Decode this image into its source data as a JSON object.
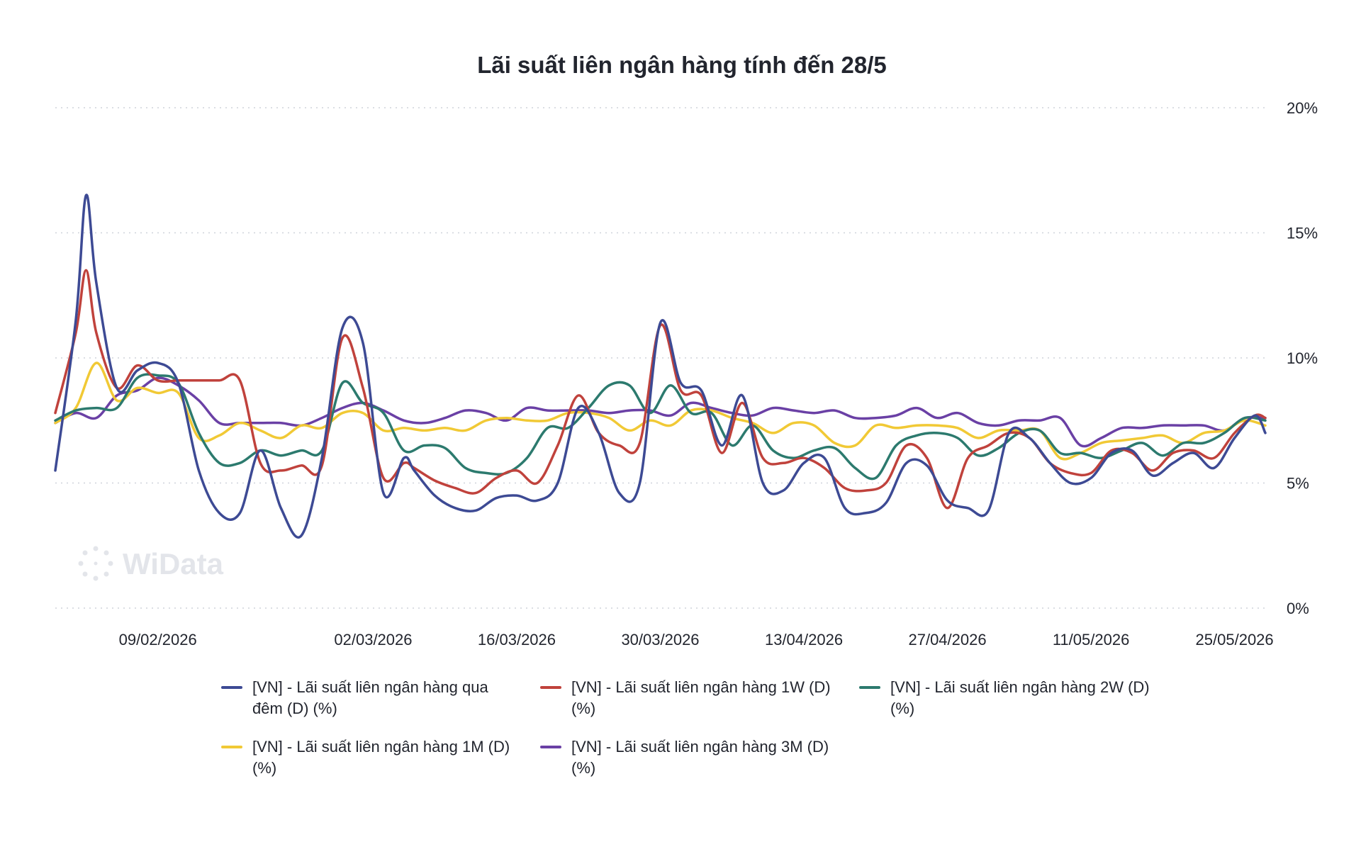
{
  "watermark": "WiData",
  "chart_data": {
    "type": "line",
    "title": "Lãi suất liên ngân hàng tính đến 28/5",
    "xlabel": "",
    "ylabel": "",
    "ylim": [
      0,
      20
    ],
    "yticks": [
      0,
      5,
      10,
      15,
      20
    ],
    "ytick_labels": [
      "0%",
      "5%",
      "10%",
      "15%",
      "20%"
    ],
    "x_range": [
      "2026-01-30",
      "2026-05-28"
    ],
    "xticks": [
      "2026-02-09",
      "2026-03-02",
      "2026-03-16",
      "2026-03-30",
      "2026-04-13",
      "2026-04-27",
      "2026-05-11",
      "2026-05-25"
    ],
    "xtick_labels": [
      "09/02/2026",
      "02/03/2026",
      "16/03/2026",
      "30/03/2026",
      "13/04/2026",
      "27/04/2026",
      "11/05/2026",
      "25/05/2026"
    ],
    "grid": true,
    "legend_position": "bottom",
    "series": [
      {
        "name": "[VN] - Lãi suất liên ngân hàng qua đêm (D) (%)",
        "color": "#3d4a94",
        "x": [
          "2026-01-30",
          "2026-02-01",
          "2026-02-02",
          "2026-02-03",
          "2026-02-05",
          "2026-02-07",
          "2026-02-09",
          "2026-02-11",
          "2026-02-13",
          "2026-02-15",
          "2026-02-17",
          "2026-02-19",
          "2026-02-21",
          "2026-02-23",
          "2026-02-25",
          "2026-02-27",
          "2026-03-01",
          "2026-03-03",
          "2026-03-05",
          "2026-03-06",
          "2026-03-08",
          "2026-03-10",
          "2026-03-12",
          "2026-03-14",
          "2026-03-16",
          "2026-03-18",
          "2026-03-20",
          "2026-03-22",
          "2026-03-24",
          "2026-03-26",
          "2026-03-28",
          "2026-03-30",
          "2026-04-01",
          "2026-04-03",
          "2026-04-05",
          "2026-04-07",
          "2026-04-09",
          "2026-04-11",
          "2026-04-13",
          "2026-04-15",
          "2026-04-17",
          "2026-04-19",
          "2026-04-21",
          "2026-04-23",
          "2026-04-25",
          "2026-04-27",
          "2026-04-29",
          "2026-05-01",
          "2026-05-03",
          "2026-05-05",
          "2026-05-07",
          "2026-05-09",
          "2026-05-11",
          "2026-05-13",
          "2026-05-15",
          "2026-05-17",
          "2026-05-19",
          "2026-05-21",
          "2026-05-23",
          "2026-05-25",
          "2026-05-27",
          "2026-05-28"
        ],
        "values": [
          5.5,
          11.5,
          16.5,
          13.0,
          8.8,
          9.5,
          9.8,
          9.0,
          5.5,
          3.8,
          3.8,
          6.3,
          4.0,
          2.9,
          6.0,
          11.2,
          10.6,
          4.6,
          6.0,
          5.5,
          4.5,
          4.0,
          3.9,
          4.4,
          4.5,
          4.3,
          5.0,
          8.0,
          7.0,
          4.6,
          5.0,
          11.4,
          9.0,
          8.7,
          6.5,
          8.5,
          5.0,
          4.7,
          5.8,
          6.0,
          4.0,
          3.8,
          4.2,
          5.8,
          5.7,
          4.3,
          4.0,
          3.9,
          7.0,
          6.8,
          5.8,
          5.0,
          5.2,
          6.2,
          6.3,
          5.3,
          5.8,
          6.2,
          5.6,
          6.8,
          7.7,
          7.0
        ]
      },
      {
        "name": "[VN] - Lãi suất liên ngân hàng 1W (D) (%)",
        "color": "#c0423c",
        "x": [
          "2026-01-30",
          "2026-02-01",
          "2026-02-02",
          "2026-02-03",
          "2026-02-05",
          "2026-02-07",
          "2026-02-09",
          "2026-02-11",
          "2026-02-13",
          "2026-02-15",
          "2026-02-17",
          "2026-02-19",
          "2026-02-21",
          "2026-02-23",
          "2026-02-25",
          "2026-02-27",
          "2026-03-01",
          "2026-03-03",
          "2026-03-05",
          "2026-03-06",
          "2026-03-08",
          "2026-03-10",
          "2026-03-12",
          "2026-03-14",
          "2026-03-16",
          "2026-03-18",
          "2026-03-20",
          "2026-03-22",
          "2026-03-24",
          "2026-03-26",
          "2026-03-28",
          "2026-03-30",
          "2026-04-01",
          "2026-04-03",
          "2026-04-05",
          "2026-04-07",
          "2026-04-09",
          "2026-04-11",
          "2026-04-13",
          "2026-04-15",
          "2026-04-17",
          "2026-04-19",
          "2026-04-21",
          "2026-04-23",
          "2026-04-25",
          "2026-04-27",
          "2026-04-29",
          "2026-05-01",
          "2026-05-03",
          "2026-05-05",
          "2026-05-07",
          "2026-05-09",
          "2026-05-11",
          "2026-05-13",
          "2026-05-15",
          "2026-05-17",
          "2026-05-19",
          "2026-05-21",
          "2026-05-23",
          "2026-05-25",
          "2026-05-27",
          "2026-05-28"
        ],
        "values": [
          7.8,
          11.0,
          13.5,
          11.0,
          8.8,
          9.7,
          9.1,
          9.1,
          9.1,
          9.1,
          9.1,
          5.8,
          5.5,
          5.7,
          5.7,
          10.8,
          8.8,
          5.2,
          5.8,
          5.6,
          5.1,
          4.8,
          4.6,
          5.2,
          5.5,
          5.0,
          6.5,
          8.5,
          7.0,
          6.5,
          6.6,
          11.3,
          8.7,
          8.5,
          6.2,
          8.2,
          6.0,
          5.8,
          6.0,
          5.6,
          4.8,
          4.7,
          5.0,
          6.5,
          6.0,
          4.0,
          6.0,
          6.5,
          7.0,
          6.8,
          5.8,
          5.4,
          5.4,
          6.3,
          6.2,
          5.5,
          6.2,
          6.3,
          6.0,
          7.0,
          7.7,
          7.6
        ]
      },
      {
        "name": "[VN] - Lãi suất liên ngân hàng 2W (D) (%)",
        "color": "#2c7a6e",
        "x": [
          "2026-01-30",
          "2026-02-01",
          "2026-02-03",
          "2026-02-05",
          "2026-02-07",
          "2026-02-09",
          "2026-02-11",
          "2026-02-13",
          "2026-02-15",
          "2026-02-17",
          "2026-02-19",
          "2026-02-21",
          "2026-02-23",
          "2026-02-25",
          "2026-02-27",
          "2026-03-01",
          "2026-03-03",
          "2026-03-05",
          "2026-03-07",
          "2026-03-09",
          "2026-03-11",
          "2026-03-13",
          "2026-03-15",
          "2026-03-17",
          "2026-03-19",
          "2026-03-21",
          "2026-03-23",
          "2026-03-25",
          "2026-03-27",
          "2026-03-29",
          "2026-03-31",
          "2026-04-02",
          "2026-04-04",
          "2026-04-06",
          "2026-04-08",
          "2026-04-10",
          "2026-04-12",
          "2026-04-14",
          "2026-04-16",
          "2026-04-18",
          "2026-04-20",
          "2026-04-22",
          "2026-04-24",
          "2026-04-26",
          "2026-04-28",
          "2026-04-30",
          "2026-05-02",
          "2026-05-04",
          "2026-05-06",
          "2026-05-08",
          "2026-05-10",
          "2026-05-12",
          "2026-05-14",
          "2026-05-16",
          "2026-05-18",
          "2026-05-20",
          "2026-05-22",
          "2026-05-24",
          "2026-05-26",
          "2026-05-28"
        ],
        "values": [
          7.5,
          7.9,
          8.0,
          8.0,
          9.2,
          9.3,
          9.0,
          7.0,
          5.8,
          5.8,
          6.3,
          6.1,
          6.3,
          6.3,
          9.0,
          8.2,
          7.8,
          6.3,
          6.5,
          6.4,
          5.6,
          5.4,
          5.4,
          6.0,
          7.2,
          7.2,
          8.0,
          8.9,
          8.9,
          7.8,
          8.9,
          7.8,
          7.8,
          6.5,
          7.3,
          6.3,
          6.0,
          6.3,
          6.4,
          5.6,
          5.2,
          6.5,
          6.9,
          7.0,
          6.8,
          6.1,
          6.4,
          7.0,
          7.1,
          6.2,
          6.2,
          6.0,
          6.3,
          6.6,
          6.1,
          6.6,
          6.6,
          7.0,
          7.6,
          7.5
        ]
      },
      {
        "name": "[VN] - Lãi suất liên ngân hàng 1M (D) (%)",
        "color": "#f1c935",
        "x": [
          "2026-01-30",
          "2026-02-01",
          "2026-02-03",
          "2026-02-05",
          "2026-02-07",
          "2026-02-09",
          "2026-02-11",
          "2026-02-13",
          "2026-02-15",
          "2026-02-17",
          "2026-02-19",
          "2026-02-21",
          "2026-02-23",
          "2026-02-25",
          "2026-02-27",
          "2026-03-01",
          "2026-03-03",
          "2026-03-05",
          "2026-03-07",
          "2026-03-09",
          "2026-03-11",
          "2026-03-13",
          "2026-03-15",
          "2026-03-17",
          "2026-03-19",
          "2026-03-21",
          "2026-03-23",
          "2026-03-25",
          "2026-03-27",
          "2026-03-29",
          "2026-03-31",
          "2026-04-02",
          "2026-04-04",
          "2026-04-06",
          "2026-04-08",
          "2026-04-10",
          "2026-04-12",
          "2026-04-14",
          "2026-04-16",
          "2026-04-18",
          "2026-04-20",
          "2026-04-22",
          "2026-04-24",
          "2026-04-26",
          "2026-04-28",
          "2026-04-30",
          "2026-05-02",
          "2026-05-04",
          "2026-05-06",
          "2026-05-08",
          "2026-05-10",
          "2026-05-12",
          "2026-05-14",
          "2026-05-16",
          "2026-05-18",
          "2026-05-20",
          "2026-05-22",
          "2026-05-24",
          "2026-05-26",
          "2026-05-28"
        ],
        "values": [
          7.4,
          8.0,
          9.8,
          8.3,
          8.8,
          8.6,
          8.6,
          6.8,
          6.9,
          7.4,
          7.1,
          6.8,
          7.3,
          7.2,
          7.8,
          7.8,
          7.1,
          7.2,
          7.1,
          7.2,
          7.1,
          7.5,
          7.6,
          7.5,
          7.5,
          7.8,
          7.8,
          7.6,
          7.1,
          7.5,
          7.3,
          7.9,
          7.9,
          7.6,
          7.4,
          7.0,
          7.4,
          7.3,
          6.6,
          6.5,
          7.3,
          7.2,
          7.3,
          7.3,
          7.2,
          6.8,
          7.1,
          7.1,
          7.1,
          6.0,
          6.2,
          6.6,
          6.7,
          6.8,
          6.9,
          6.6,
          7.0,
          7.1,
          7.5,
          7.3
        ]
      },
      {
        "name": "[VN] - Lãi suất liên ngân hàng 3M (D) (%)",
        "color": "#6a40a5",
        "x": [
          "2026-01-30",
          "2026-02-01",
          "2026-02-03",
          "2026-02-05",
          "2026-02-07",
          "2026-02-09",
          "2026-02-11",
          "2026-02-13",
          "2026-02-15",
          "2026-02-17",
          "2026-02-19",
          "2026-02-21",
          "2026-02-23",
          "2026-02-25",
          "2026-02-27",
          "2026-03-01",
          "2026-03-03",
          "2026-03-05",
          "2026-03-07",
          "2026-03-09",
          "2026-03-11",
          "2026-03-13",
          "2026-03-15",
          "2026-03-17",
          "2026-03-19",
          "2026-03-21",
          "2026-03-23",
          "2026-03-25",
          "2026-03-27",
          "2026-03-29",
          "2026-03-31",
          "2026-04-02",
          "2026-04-04",
          "2026-04-06",
          "2026-04-08",
          "2026-04-10",
          "2026-04-12",
          "2026-04-14",
          "2026-04-16",
          "2026-04-18",
          "2026-04-20",
          "2026-04-22",
          "2026-04-24",
          "2026-04-26",
          "2026-04-28",
          "2026-04-30",
          "2026-05-02",
          "2026-05-04",
          "2026-05-06",
          "2026-05-08",
          "2026-05-10",
          "2026-05-12",
          "2026-05-14",
          "2026-05-16",
          "2026-05-18",
          "2026-05-20",
          "2026-05-22",
          "2026-05-24",
          "2026-05-26",
          "2026-05-28"
        ],
        "values": [
          7.4,
          7.8,
          7.6,
          8.5,
          8.7,
          9.2,
          8.9,
          8.3,
          7.4,
          7.4,
          7.4,
          7.4,
          7.3,
          7.6,
          8.0,
          8.2,
          7.9,
          7.5,
          7.4,
          7.6,
          7.9,
          7.8,
          7.5,
          8.0,
          7.9,
          7.9,
          7.9,
          7.8,
          7.9,
          7.9,
          7.7,
          8.2,
          8.0,
          7.8,
          7.7,
          8.0,
          7.9,
          7.8,
          7.9,
          7.6,
          7.6,
          7.7,
          8.0,
          7.6,
          7.8,
          7.4,
          7.3,
          7.5,
          7.5,
          7.6,
          6.5,
          6.8,
          7.2,
          7.2,
          7.3,
          7.3,
          7.3,
          7.1,
          7.6,
          7.6
        ]
      }
    ]
  }
}
